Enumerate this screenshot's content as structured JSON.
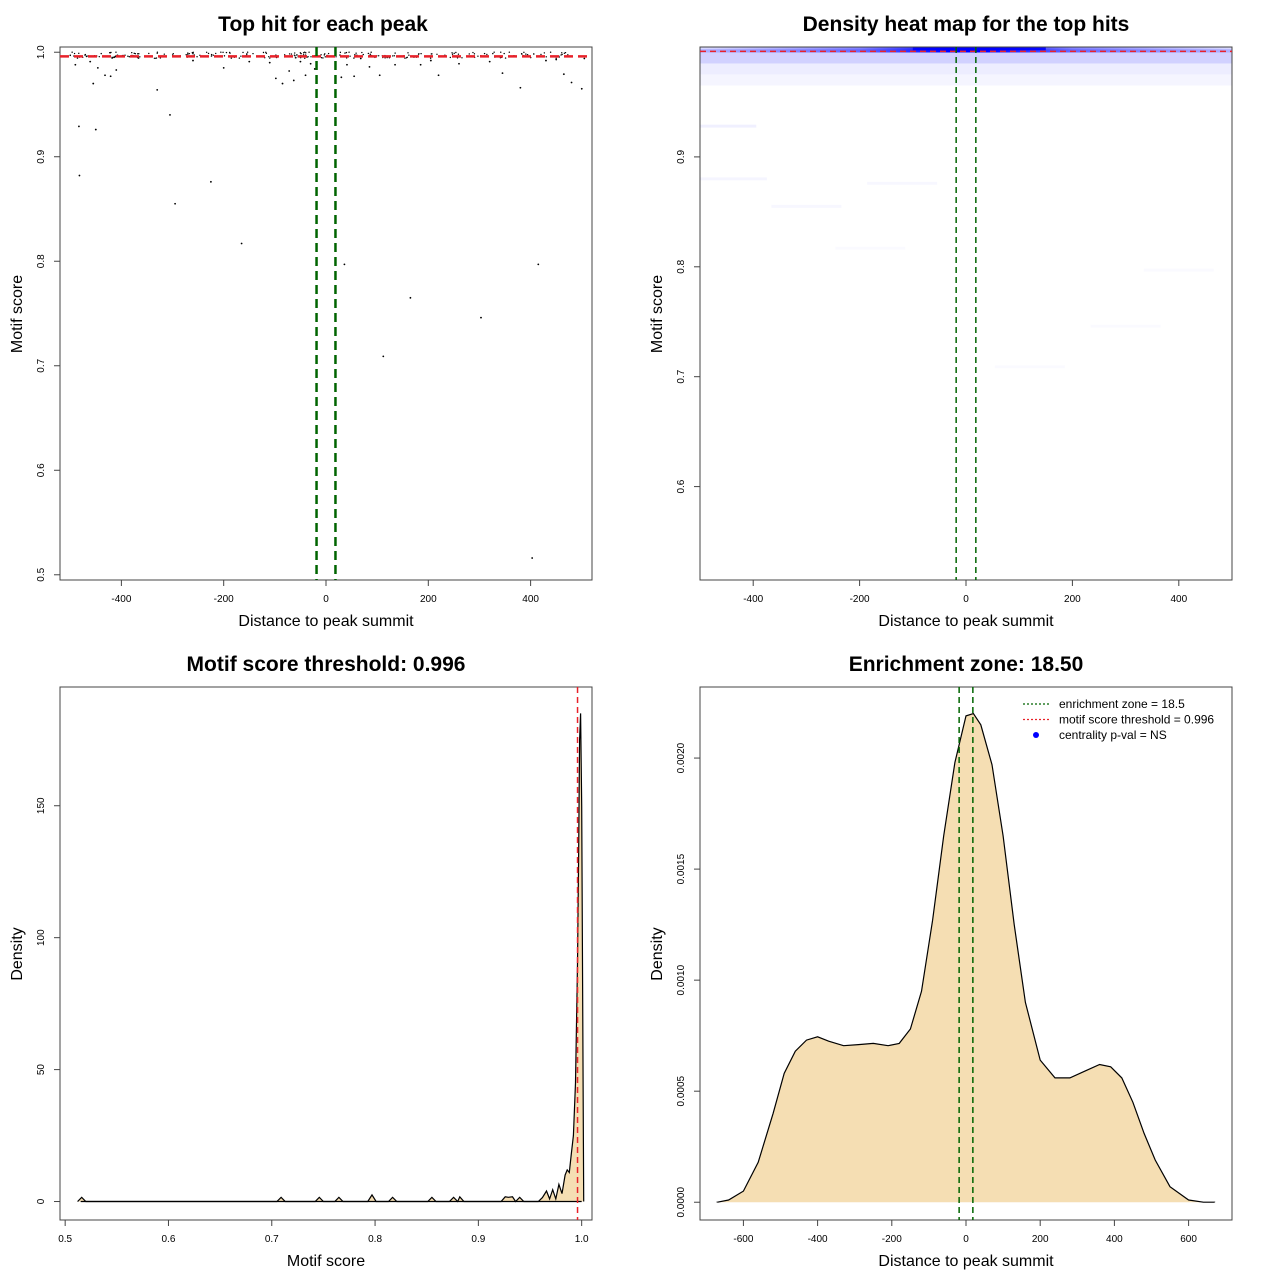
{
  "chart_data": [
    {
      "type": "scatter",
      "title": "Top hit for each peak",
      "xlabel": "Distance to peak summit",
      "ylabel": "Motif score",
      "xlim": [
        -520,
        520
      ],
      "ylim": [
        0.495,
        1.005
      ],
      "x_ticks": [
        -400,
        -200,
        0,
        200,
        400
      ],
      "y_ticks": [
        0.5,
        0.6,
        0.7,
        0.8,
        0.9,
        1.0
      ],
      "x_tick_labels": [
        "-400",
        "-200",
        "0",
        "200",
        "400"
      ],
      "y_tick_labels": [
        "0.5",
        "0.6",
        "0.7",
        "0.8",
        "0.9",
        "1.0"
      ],
      "threshold": 0.996,
      "zone": [
        -18.5,
        18.5
      ],
      "threshold_color": "#e8222a",
      "zone_color": "#006400",
      "points": [
        [
          -490,
          0.988
        ],
        [
          -483,
          0.929
        ],
        [
          -482,
          0.882
        ],
        [
          -468,
          0.996
        ],
        [
          -461,
          0.991
        ],
        [
          -455,
          0.97
        ],
        [
          -450,
          0.926
        ],
        [
          -446,
          0.985
        ],
        [
          -432,
          0.978
        ],
        [
          -421,
          0.977
        ],
        [
          -410,
          0.983
        ],
        [
          -368,
          0.995
        ],
        [
          -330,
          0.964
        ],
        [
          -305,
          0.94
        ],
        [
          -295,
          0.855
        ],
        [
          -260,
          0.992
        ],
        [
          -225,
          0.876
        ],
        [
          -200,
          0.985
        ],
        [
          -165,
          0.817
        ],
        [
          -150,
          0.991
        ],
        [
          -110,
          0.99
        ],
        [
          -98,
          0.975
        ],
        [
          -85,
          0.97
        ],
        [
          -72,
          0.982
        ],
        [
          -63,
          0.973
        ],
        [
          -50,
          0.991
        ],
        [
          -40,
          0.978
        ],
        [
          -30,
          0.989
        ],
        [
          -22,
          0.984
        ],
        [
          30,
          0.976
        ],
        [
          36,
          0.797
        ],
        [
          41,
          0.988
        ],
        [
          55,
          0.977
        ],
        [
          68,
          0.994
        ],
        [
          85,
          0.986
        ],
        [
          105,
          0.978
        ],
        [
          112,
          0.709
        ],
        [
          135,
          0.988
        ],
        [
          165,
          0.765
        ],
        [
          185,
          0.988
        ],
        [
          205,
          0.992
        ],
        [
          220,
          0.978
        ],
        [
          260,
          0.989
        ],
        [
          303,
          0.746
        ],
        [
          320,
          0.991
        ],
        [
          345,
          0.98
        ],
        [
          380,
          0.966
        ],
        [
          403,
          0.516
        ],
        [
          415,
          0.797
        ],
        [
          430,
          0.992
        ],
        [
          450,
          0.993
        ],
        [
          465,
          0.979
        ],
        [
          480,
          0.971
        ],
        [
          500,
          0.965
        ],
        [
          505,
          0.994
        ]
      ]
    },
    {
      "type": "heatmap",
      "title": "Density heat map for the top hits",
      "xlabel": "Distance to peak summit",
      "ylabel": "Motif score",
      "xlim": [
        -500,
        500
      ],
      "ylim": [
        0.515,
        1.0
      ],
      "x_ticks": [
        -400,
        -200,
        0,
        200,
        400
      ],
      "y_ticks": [
        0.6,
        0.7,
        0.8,
        0.9
      ],
      "x_tick_labels": [
        "-400",
        "-200",
        "0",
        "200",
        "400"
      ],
      "y_tick_labels": [
        "0.6",
        "0.7",
        "0.8",
        "0.9"
      ],
      "threshold": 0.996,
      "zone": [
        -18.5,
        18.5
      ],
      "threshold_color": "#e8222a",
      "zone_color": "#006400",
      "high_color": "#0000ff"
    },
    {
      "type": "area",
      "title": "Motif score threshold: 0.996",
      "xlabel": "Motif score",
      "ylabel": "Density",
      "xlim": [
        0.495,
        1.01
      ],
      "ylim": [
        -7,
        195
      ],
      "x_ticks": [
        0.5,
        0.6,
        0.7,
        0.8,
        0.9,
        1.0
      ],
      "y_ticks": [
        0,
        50,
        100,
        150
      ],
      "x_tick_labels": [
        "0.5",
        "0.6",
        "0.7",
        "0.8",
        "0.9",
        "1.0"
      ],
      "y_tick_labels": [
        "0",
        "50",
        "100",
        "150"
      ],
      "threshold": 0.996,
      "threshold_color": "#e8222a",
      "fill_color": "#f5deb3",
      "x": [
        0.512,
        0.516,
        0.52,
        0.705,
        0.709,
        0.713,
        0.742,
        0.746,
        0.75,
        0.761,
        0.765,
        0.769,
        0.793,
        0.797,
        0.801,
        0.813,
        0.817,
        0.821,
        0.851,
        0.855,
        0.859,
        0.872,
        0.876,
        0.88,
        0.882,
        0.886,
        0.922,
        0.926,
        0.929,
        0.933,
        0.936,
        0.94,
        0.944,
        0.958,
        0.962,
        0.966,
        0.969,
        0.972,
        0.975,
        0.978,
        0.981,
        0.984,
        0.986,
        0.988,
        0.99,
        0.992,
        0.994,
        0.996,
        0.997,
        0.998,
        0.999,
        1.0,
        1.002
      ],
      "y": [
        0,
        1.6,
        0,
        0,
        1.6,
        0,
        0,
        1.6,
        0,
        0,
        1.6,
        0,
        0,
        2.5,
        0,
        0,
        1.6,
        0,
        0,
        1.6,
        0,
        0,
        1.6,
        0,
        1.8,
        0,
        0,
        1.8,
        1.6,
        1.8,
        0,
        1.6,
        0,
        0,
        1.5,
        4.0,
        1.0,
        4.5,
        1.0,
        6.5,
        3.0,
        10,
        12,
        11,
        18,
        25,
        45,
        90,
        130,
        175,
        185,
        150,
        0
      ]
    },
    {
      "type": "area",
      "title": "Enrichment zone: 18.50",
      "xlabel": "Distance to peak summit",
      "ylabel": "Density",
      "xlim": [
        -717,
        717
      ],
      "ylim": [
        -8e-05,
        0.00232
      ],
      "x_ticks": [
        -600,
        -400,
        -200,
        0,
        200,
        400,
        600
      ],
      "y_ticks": [
        0.0,
        0.0005,
        0.001,
        0.0015,
        0.002
      ],
      "x_tick_labels": [
        "-600",
        "-400",
        "-200",
        "0",
        "200",
        "400",
        "600"
      ],
      "y_tick_labels": [
        "0.0000",
        "0.0005",
        "0.0010",
        "0.0015",
        "0.0020"
      ],
      "zone": [
        -18.5,
        18.5
      ],
      "zone_color": "#006400",
      "fill_color": "#f5deb3",
      "x": [
        -670,
        -640,
        -600,
        -560,
        -520,
        -490,
        -460,
        -430,
        -400,
        -370,
        -330,
        -290,
        -250,
        -210,
        -180,
        -150,
        -120,
        -90,
        -60,
        -30,
        0,
        20,
        40,
        70,
        100,
        130,
        160,
        200,
        240,
        280,
        320,
        360,
        390,
        420,
        450,
        480,
        510,
        550,
        600,
        640,
        670
      ],
      "y": [
        0.0,
        1e-05,
        5e-05,
        0.00018,
        0.0004,
        0.00058,
        0.00068,
        0.00073,
        0.000745,
        0.000725,
        0.000705,
        0.00071,
        0.000715,
        0.000705,
        0.000715,
        0.00078,
        0.00095,
        0.00127,
        0.00165,
        0.00198,
        0.00219,
        0.0022,
        0.00215,
        0.00197,
        0.00165,
        0.00125,
        0.0009,
        0.00064,
        0.00056,
        0.00056,
        0.00059,
        0.00062,
        0.00061,
        0.00056,
        0.00045,
        0.00031,
        0.00019,
        7e-05,
        1e-05,
        0.0,
        0.0
      ],
      "legend": [
        {
          "label": "enrichment zone = 18.5",
          "color": "#006400",
          "kind": "line"
        },
        {
          "label": "motif score threshold = 0.996",
          "color": "#e8222a",
          "kind": "line"
        },
        {
          "label": "centrality p-val = NS",
          "color": "#0000ff",
          "kind": "point"
        }
      ],
      "legend_position": "top-right"
    }
  ]
}
